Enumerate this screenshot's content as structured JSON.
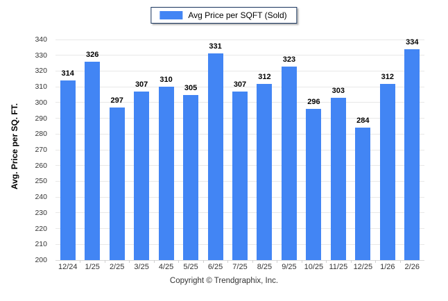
{
  "chart_data": {
    "type": "bar",
    "title": "Avg Price per SQFT (Sold)",
    "categories": [
      "12/24",
      "1/25",
      "2/25",
      "3/25",
      "4/25",
      "5/25",
      "6/25",
      "7/25",
      "8/25",
      "9/25",
      "10/25",
      "11/25",
      "12/25",
      "1/26",
      "2/26"
    ],
    "values": [
      314,
      326,
      297,
      307,
      310,
      305,
      331,
      307,
      312,
      323,
      296,
      303,
      284,
      312,
      334
    ],
    "xlabel": "",
    "ylabel": "Avg. Price per SQ. FT.",
    "ylim": [
      200,
      340
    ],
    "ytick_step": 10,
    "grid": "horizontal",
    "legend_position": "top-center",
    "bar_color": "#4285f4",
    "legend_border_color": "#16325c",
    "gridline_color": "#e8e8e8",
    "data_labels": "bold above bars"
  },
  "legend": {
    "label": "Avg Price per SQFT (Sold)"
  },
  "footer": {
    "copyright": "Copyright © Trendgraphix, Inc."
  }
}
